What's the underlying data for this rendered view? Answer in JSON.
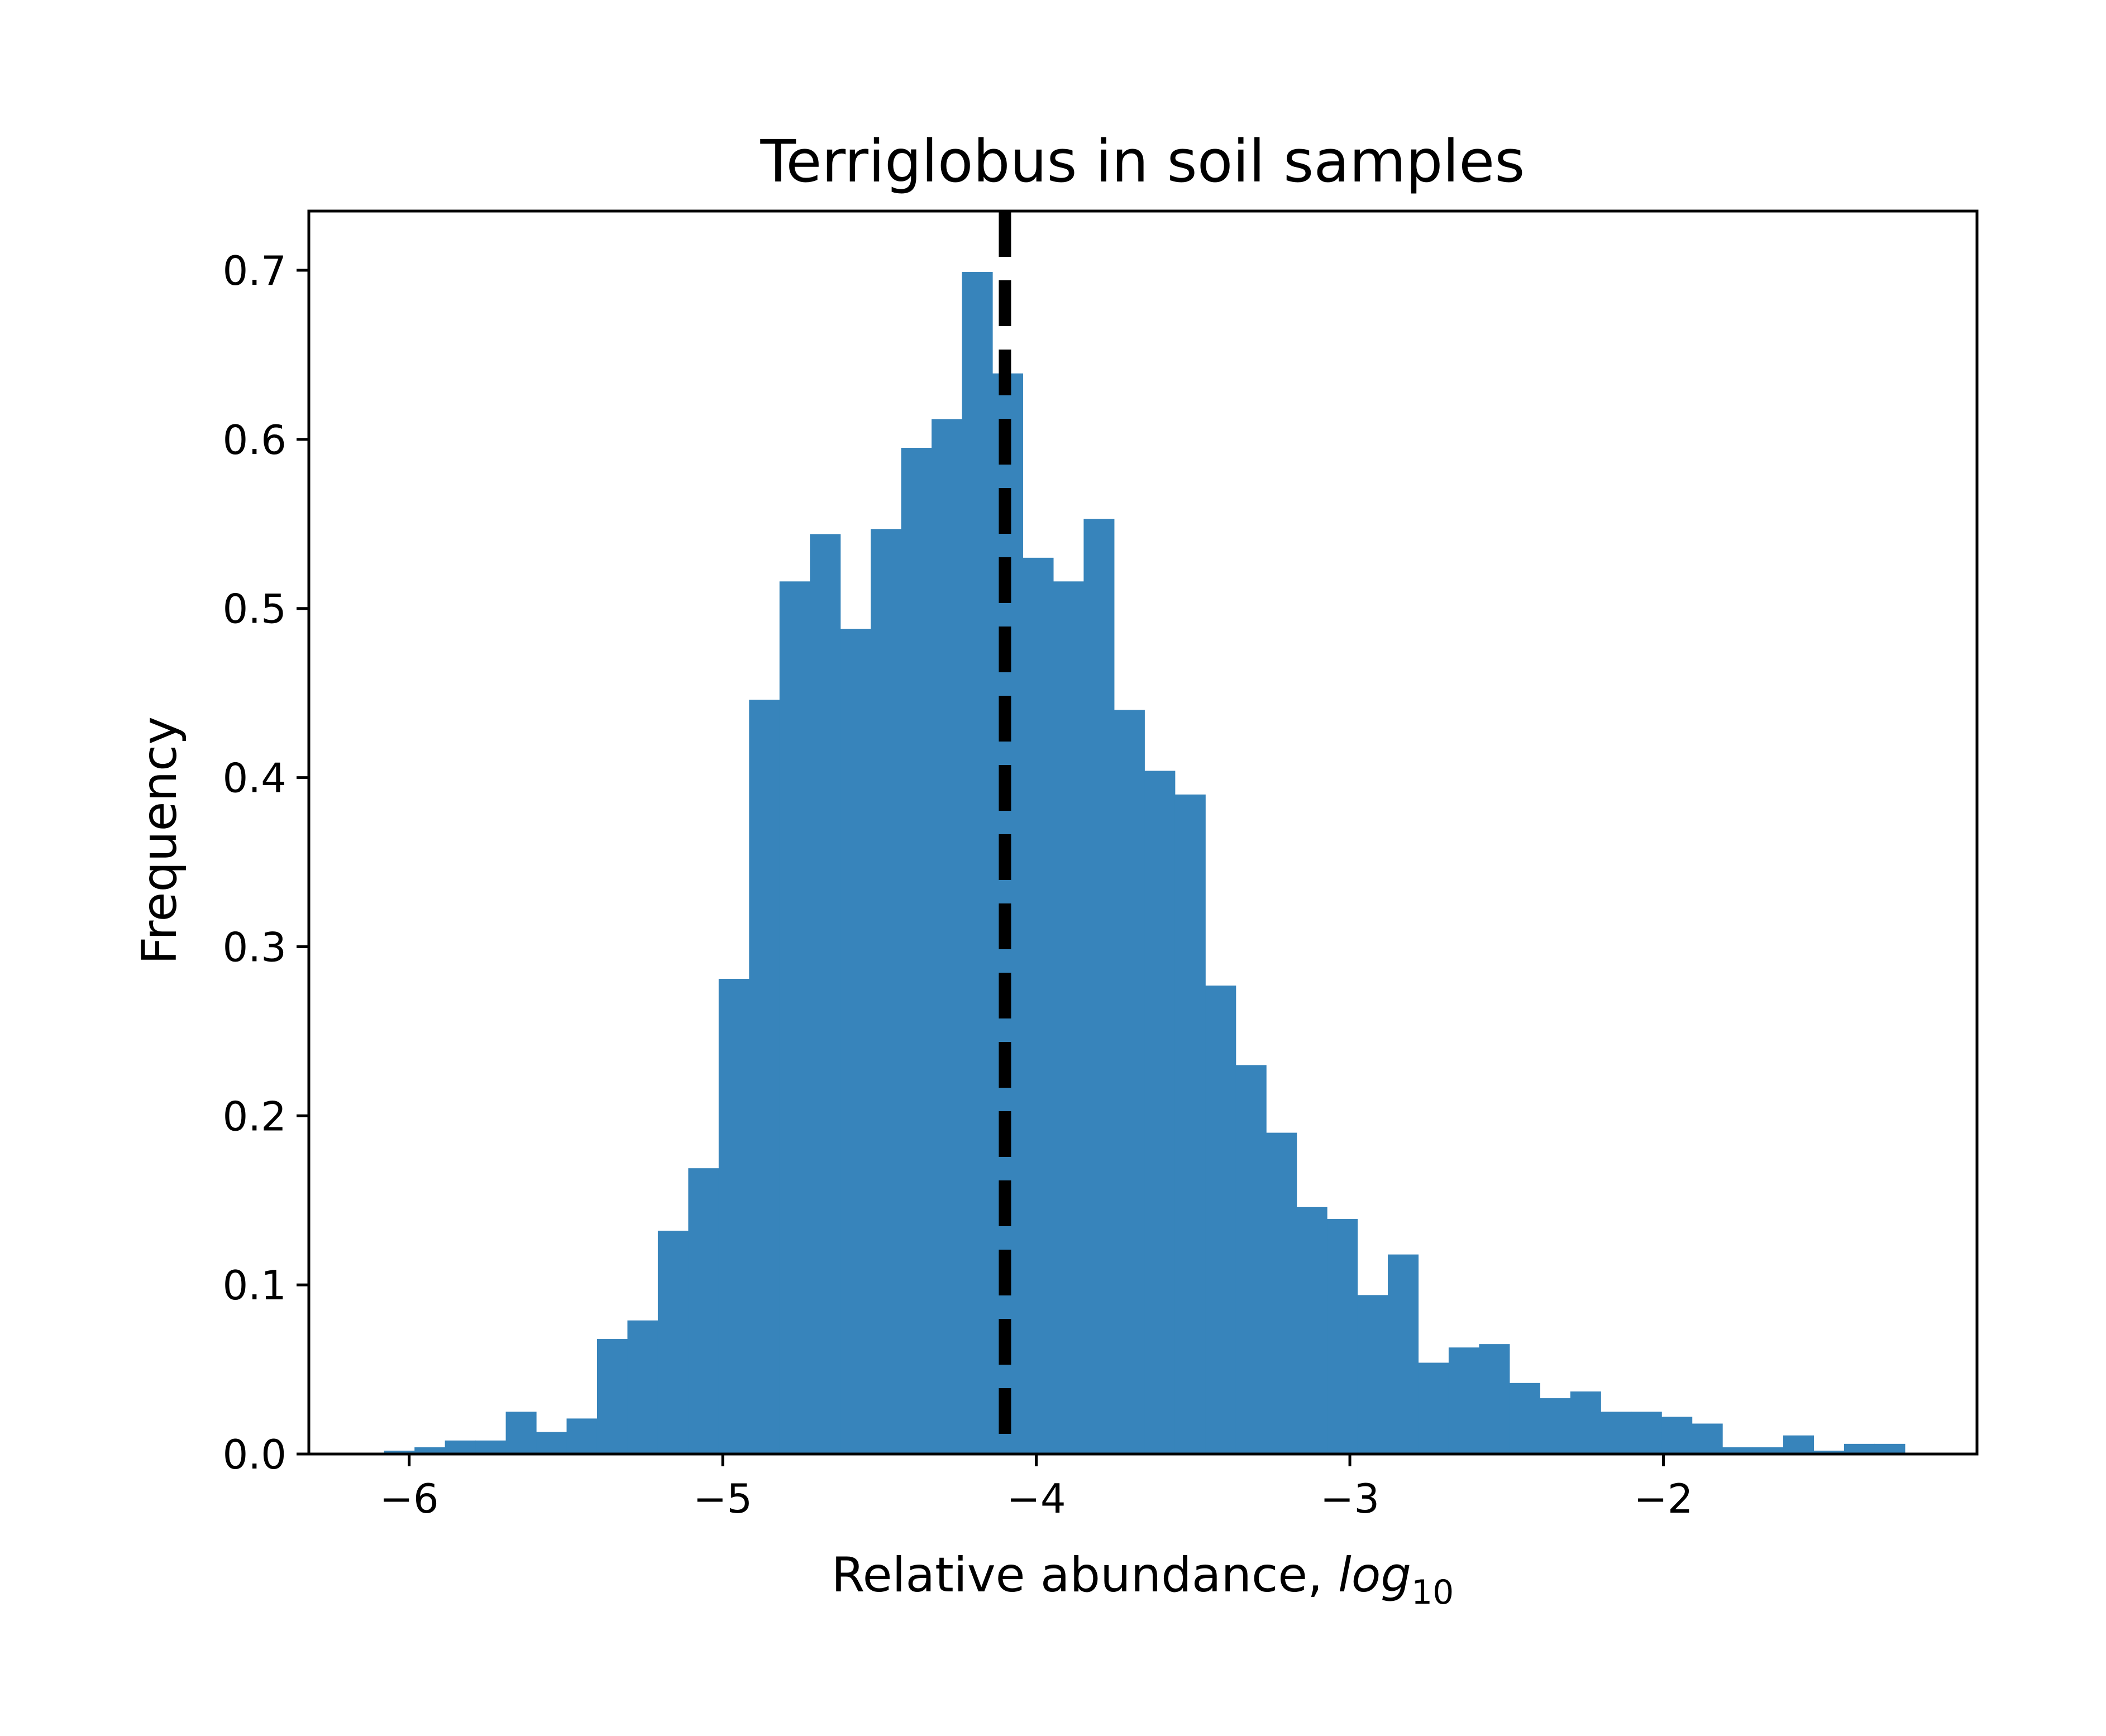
{
  "chart_data": {
    "type": "bar",
    "title": "Terriglobus in soil samples",
    "xlabel": "Relative abundance, ",
    "xlabel_italic": "log",
    "xlabel_subscript": "10",
    "ylabel": "Frequency",
    "xlim": [
      -6.32,
      -1.0
    ],
    "ylim": [
      0,
      0.735
    ],
    "bin_width": 0.097,
    "bins_start": -6.08,
    "values": [
      0.002,
      0.004,
      0.008,
      0.008,
      0.025,
      0.013,
      0.021,
      0.068,
      0.079,
      0.132,
      0.169,
      0.281,
      0.446,
      0.516,
      0.544,
      0.488,
      0.547,
      0.595,
      0.612,
      0.699,
      0.639,
      0.53,
      0.516,
      0.553,
      0.44,
      0.404,
      0.39,
      0.277,
      0.23,
      0.19,
      0.146,
      0.139,
      0.094,
      0.118,
      0.054,
      0.063,
      0.065,
      0.042,
      0.033,
      0.037,
      0.025,
      0.025,
      0.022,
      0.018,
      0.004,
      0.004,
      0.011,
      0.002,
      0.006,
      0.006
    ],
    "bar_color": "#3784bb",
    "median_line": {
      "x": -4.1,
      "color": "#000000",
      "style": "dashed"
    },
    "xticks": [
      -6,
      -5,
      -4,
      -3,
      -2
    ],
    "xtick_labels": [
      "−6",
      "−5",
      "−4",
      "−3",
      "−2"
    ],
    "yticks": [
      0.0,
      0.1,
      0.2,
      0.3,
      0.4,
      0.5,
      0.6,
      0.7
    ],
    "ytick_labels": [
      "0.0",
      "0.1",
      "0.2",
      "0.3",
      "0.4",
      "0.5",
      "0.6",
      "0.7"
    ],
    "grid": false,
    "legend": "none"
  }
}
